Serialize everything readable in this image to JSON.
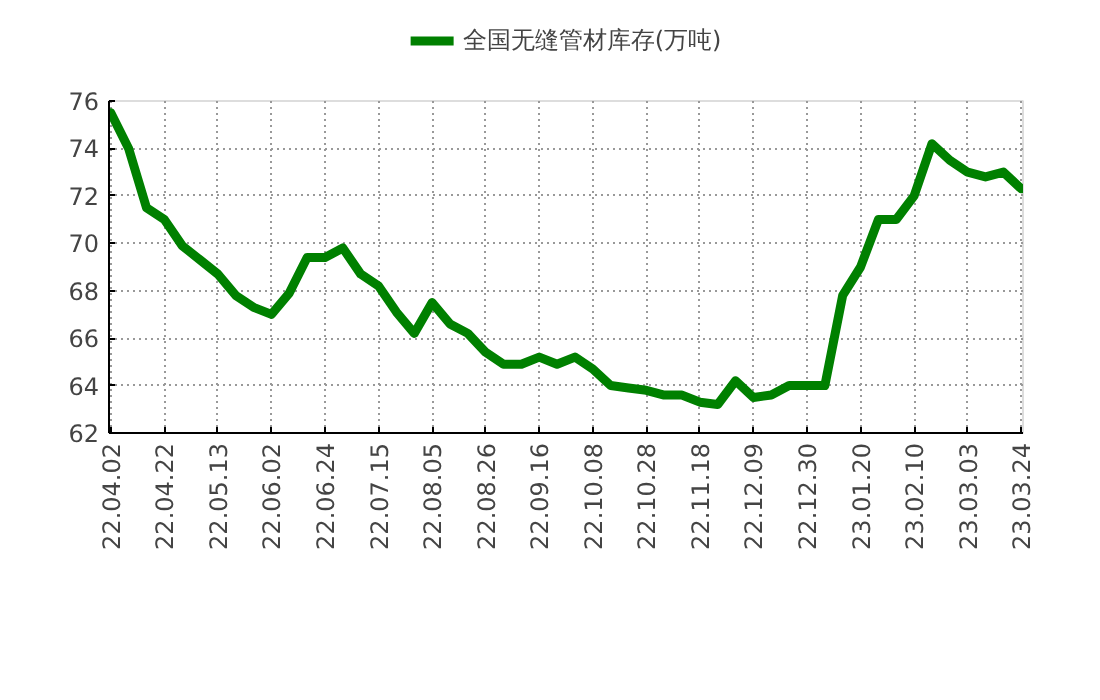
{
  "chart_data": {
    "type": "line",
    "categories": [
      "22.04.02",
      null,
      null,
      "22.04.22",
      null,
      null,
      "22.05.13",
      null,
      null,
      "22.06.02",
      null,
      null,
      "22.06.24",
      null,
      null,
      "22.07.15",
      null,
      null,
      "22.08.05",
      null,
      null,
      "22.08.26",
      null,
      null,
      "22.09.16",
      null,
      null,
      "22.10.08",
      null,
      null,
      "22.10.28",
      null,
      null,
      "22.11.18",
      null,
      null,
      "22.12.09",
      null,
      null,
      "22.12.30",
      null,
      null,
      "23.01.20",
      null,
      null,
      "23.02.10",
      null,
      null,
      "23.03.03",
      null,
      null,
      "23.03.24"
    ],
    "series": [
      {
        "name": "全国无缝管材库存(万吨)",
        "color": "#008000",
        "values": [
          75.5,
          74.0,
          71.5,
          71.0,
          69.9,
          69.3,
          68.7,
          67.8,
          67.3,
          67.0,
          67.9,
          69.4,
          69.4,
          69.8,
          68.7,
          68.2,
          67.1,
          66.2,
          67.5,
          66.6,
          66.2,
          65.4,
          64.9,
          64.9,
          65.2,
          64.9,
          65.2,
          64.7,
          64.0,
          63.9,
          63.8,
          63.6,
          63.6,
          63.3,
          63.2,
          64.2,
          63.5,
          63.6,
          64.0,
          64.0,
          64.0,
          67.8,
          69.0,
          71.0,
          71.0,
          72.0,
          74.2,
          73.5,
          73.0,
          72.8,
          73.0,
          72.3
        ]
      }
    ],
    "ylim": [
      62,
      76
    ],
    "yticks": [
      62,
      64,
      66,
      68,
      70,
      72,
      74,
      76
    ],
    "grid": true,
    "legend": "top",
    "marker": "none",
    "line_style": "solid"
  }
}
